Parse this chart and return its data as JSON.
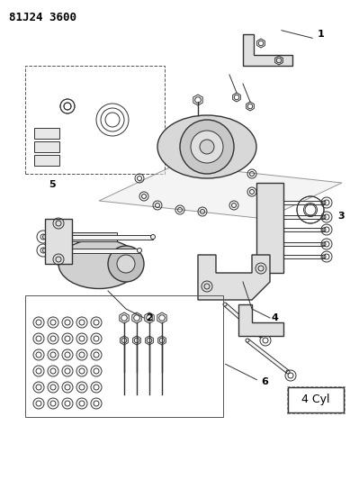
{
  "title": "81J24 3600",
  "label_4cyl": "4 Cyl",
  "background_color": "#ffffff",
  "border_color": "#000000",
  "line_color": "#333333",
  "part_labels": [
    "1",
    "2",
    "3",
    "4",
    "5",
    "6"
  ],
  "fig_width": 3.99,
  "fig_height": 5.33,
  "dpi": 100
}
